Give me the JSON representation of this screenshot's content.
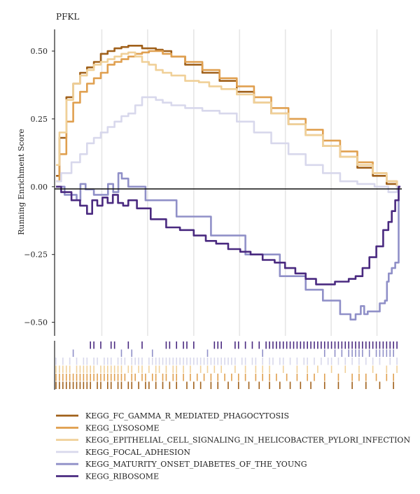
{
  "chart_data": {
    "type": "line",
    "title": "PFKL",
    "ylabel": "Running Enrichment Score",
    "xlabel": "",
    "ylim": [
      -0.55,
      0.58
    ],
    "xlim": [
      0,
      100
    ],
    "yticks": [
      0.5,
      0.25,
      0.0,
      -0.25,
      -0.5
    ],
    "ytick_labels": [
      "0.50",
      "0.25",
      "0.00",
      "−0.25",
      "−0.50"
    ],
    "grid": true,
    "legend_position": "bottom",
    "series": [
      {
        "name": "KEGG_FC_GAMMA_R_MEDIATED_PHAGOCYTOSIS",
        "color": "#a0601a",
        "points": [
          [
            0,
            0.04
          ],
          [
            2,
            0.18
          ],
          [
            4,
            0.33
          ],
          [
            6,
            0.38
          ],
          [
            8,
            0.42
          ],
          [
            10,
            0.44
          ],
          [
            12,
            0.46
          ],
          [
            14,
            0.49
          ],
          [
            16,
            0.5
          ],
          [
            18,
            0.51
          ],
          [
            20,
            0.515
          ],
          [
            22,
            0.52
          ],
          [
            24,
            0.52
          ],
          [
            26,
            0.51
          ],
          [
            28,
            0.51
          ],
          [
            30,
            0.505
          ],
          [
            32,
            0.5
          ],
          [
            35,
            0.48
          ],
          [
            40,
            0.45
          ],
          [
            45,
            0.42
          ],
          [
            50,
            0.39
          ],
          [
            55,
            0.35
          ],
          [
            60,
            0.31
          ],
          [
            65,
            0.27
          ],
          [
            70,
            0.23
          ],
          [
            75,
            0.19
          ],
          [
            80,
            0.15
          ],
          [
            85,
            0.11
          ],
          [
            90,
            0.07
          ],
          [
            94,
            0.04
          ],
          [
            98,
            0.01
          ],
          [
            100,
            0.0
          ]
        ]
      },
      {
        "name": "KEGG_LYSOSOME",
        "color": "#e0a050",
        "points": [
          [
            0,
            0.02
          ],
          [
            2,
            0.12
          ],
          [
            4,
            0.24
          ],
          [
            6,
            0.31
          ],
          [
            8,
            0.35
          ],
          [
            10,
            0.38
          ],
          [
            12,
            0.4
          ],
          [
            14,
            0.42
          ],
          [
            16,
            0.45
          ],
          [
            18,
            0.46
          ],
          [
            20,
            0.47
          ],
          [
            22,
            0.48
          ],
          [
            24,
            0.49
          ],
          [
            26,
            0.495
          ],
          [
            28,
            0.5
          ],
          [
            30,
            0.5
          ],
          [
            32,
            0.49
          ],
          [
            35,
            0.48
          ],
          [
            40,
            0.46
          ],
          [
            45,
            0.43
          ],
          [
            50,
            0.4
          ],
          [
            55,
            0.37
          ],
          [
            60,
            0.33
          ],
          [
            65,
            0.29
          ],
          [
            70,
            0.25
          ],
          [
            75,
            0.21
          ],
          [
            80,
            0.17
          ],
          [
            85,
            0.13
          ],
          [
            90,
            0.09
          ],
          [
            94,
            0.05
          ],
          [
            98,
            0.02
          ],
          [
            100,
            0.0
          ]
        ]
      },
      {
        "name": "KEGG_EPITHELIAL_CELL_SIGNALING_IN_HELICOBACTER_PYLORI_INFECTION",
        "color": "#f0d098",
        "points": [
          [
            0,
            0.08
          ],
          [
            2,
            0.2
          ],
          [
            4,
            0.32
          ],
          [
            6,
            0.38
          ],
          [
            8,
            0.41
          ],
          [
            10,
            0.43
          ],
          [
            12,
            0.45
          ],
          [
            14,
            0.46
          ],
          [
            16,
            0.47
          ],
          [
            18,
            0.48
          ],
          [
            20,
            0.49
          ],
          [
            22,
            0.495
          ],
          [
            24,
            0.48
          ],
          [
            26,
            0.46
          ],
          [
            28,
            0.45
          ],
          [
            30,
            0.43
          ],
          [
            32,
            0.42
          ],
          [
            35,
            0.41
          ],
          [
            40,
            0.39
          ],
          [
            43,
            0.385
          ],
          [
            46,
            0.37
          ],
          [
            50,
            0.36
          ],
          [
            55,
            0.34
          ],
          [
            60,
            0.31
          ],
          [
            65,
            0.27
          ],
          [
            70,
            0.23
          ],
          [
            75,
            0.19
          ],
          [
            80,
            0.15
          ],
          [
            85,
            0.11
          ],
          [
            90,
            0.08
          ],
          [
            94,
            0.05
          ],
          [
            98,
            0.02
          ],
          [
            100,
            0.0
          ]
        ]
      },
      {
        "name": "KEGG_FOCAL_ADHESION",
        "color": "#d8d8ec",
        "points": [
          [
            0,
            0.02
          ],
          [
            3,
            0.05
          ],
          [
            6,
            0.09
          ],
          [
            8,
            0.12
          ],
          [
            10,
            0.16
          ],
          [
            12,
            0.18
          ],
          [
            14,
            0.2
          ],
          [
            16,
            0.22
          ],
          [
            18,
            0.24
          ],
          [
            20,
            0.26
          ],
          [
            22,
            0.27
          ],
          [
            24,
            0.3
          ],
          [
            26,
            0.33
          ],
          [
            28,
            0.33
          ],
          [
            30,
            0.32
          ],
          [
            32,
            0.31
          ],
          [
            35,
            0.3
          ],
          [
            40,
            0.29
          ],
          [
            45,
            0.28
          ],
          [
            50,
            0.27
          ],
          [
            55,
            0.24
          ],
          [
            60,
            0.2
          ],
          [
            65,
            0.16
          ],
          [
            70,
            0.12
          ],
          [
            75,
            0.08
          ],
          [
            80,
            0.05
          ],
          [
            85,
            0.02
          ],
          [
            90,
            0.01
          ],
          [
            95,
            0.0
          ],
          [
            98,
            -0.02
          ],
          [
            100,
            0.0
          ]
        ]
      },
      {
        "name": "KEGG_MATURITY_ONSET_DIABETES_OF_THE_YOUNG",
        "color": "#9090c8",
        "points": [
          [
            0,
            0.0
          ],
          [
            5,
            -0.03
          ],
          [
            7,
            -0.05
          ],
          [
            7.2,
            0.01
          ],
          [
            10,
            -0.01
          ],
          [
            12,
            -0.03
          ],
          [
            15,
            -0.03
          ],
          [
            15.2,
            0.01
          ],
          [
            18,
            -0.02
          ],
          [
            18.2,
            0.05
          ],
          [
            20,
            0.03
          ],
          [
            22,
            0.0
          ],
          [
            30,
            -0.05
          ],
          [
            40,
            -0.11
          ],
          [
            50,
            -0.18
          ],
          [
            60,
            -0.25
          ],
          [
            70,
            -0.33
          ],
          [
            75,
            -0.38
          ],
          [
            80,
            -0.42
          ],
          [
            85,
            -0.47
          ],
          [
            86,
            -0.49
          ],
          [
            88,
            -0.47
          ],
          [
            89,
            -0.44
          ],
          [
            90,
            -0.47
          ],
          [
            91,
            -0.46
          ],
          [
            93,
            -0.46
          ],
          [
            95,
            -0.43
          ],
          [
            96,
            -0.42
          ],
          [
            96.2,
            -0.35
          ],
          [
            97,
            -0.32
          ],
          [
            98,
            -0.3
          ],
          [
            99,
            -0.28
          ],
          [
            100,
            0.0
          ]
        ]
      },
      {
        "name": "KEGG_RIBOSOME",
        "color": "#4a2a80",
        "points": [
          [
            0,
            0.0
          ],
          [
            3,
            -0.02
          ],
          [
            6,
            -0.05
          ],
          [
            8,
            -0.07
          ],
          [
            10,
            -0.1
          ],
          [
            11,
            -0.05
          ],
          [
            13,
            -0.07
          ],
          [
            14,
            -0.04
          ],
          [
            16,
            -0.06
          ],
          [
            17,
            -0.03
          ],
          [
            19,
            -0.06
          ],
          [
            20,
            -0.07
          ],
          [
            22,
            -0.05
          ],
          [
            25,
            -0.08
          ],
          [
            30,
            -0.12
          ],
          [
            34,
            -0.15
          ],
          [
            38,
            -0.16
          ],
          [
            42,
            -0.18
          ],
          [
            45,
            -0.2
          ],
          [
            48,
            -0.21
          ],
          [
            52,
            -0.23
          ],
          [
            55,
            -0.24
          ],
          [
            58,
            -0.25
          ],
          [
            62,
            -0.27
          ],
          [
            65,
            -0.28
          ],
          [
            68,
            -0.3
          ],
          [
            71,
            -0.32
          ],
          [
            74,
            -0.34
          ],
          [
            77,
            -0.36
          ],
          [
            80,
            -0.36
          ],
          [
            82,
            -0.35
          ],
          [
            84,
            -0.35
          ],
          [
            86,
            -0.34
          ],
          [
            88,
            -0.33
          ],
          [
            90,
            -0.3
          ],
          [
            92,
            -0.26
          ],
          [
            94,
            -0.22
          ],
          [
            96,
            -0.16
          ],
          [
            97,
            -0.13
          ],
          [
            98,
            -0.09
          ],
          [
            99,
            -0.05
          ],
          [
            100,
            0.0
          ]
        ]
      }
    ],
    "hit_rows": [
      {
        "color": "#4a2a80",
        "hits": [
          10,
          11,
          13,
          16,
          17,
          21,
          25,
          32,
          33,
          35,
          37,
          38,
          40,
          46,
          47,
          48,
          52,
          53,
          55,
          57,
          59,
          61,
          62,
          63,
          64,
          65,
          66,
          67,
          68,
          69,
          70,
          71,
          72,
          73,
          74,
          75,
          76,
          77,
          78,
          79,
          80,
          81,
          82,
          83,
          84,
          85,
          86,
          87,
          88,
          89,
          90,
          91,
          92,
          93,
          94,
          95,
          96,
          97,
          98,
          99
        ]
      },
      {
        "color": "#9090c8",
        "hits": [
          5,
          19,
          22,
          28,
          44,
          60,
          78,
          81,
          83,
          85,
          86,
          87,
          88,
          89,
          91,
          93,
          94,
          95,
          96,
          97,
          98
        ]
      },
      {
        "color": "#d8d8ec",
        "hits": [
          0,
          2,
          4,
          6,
          8,
          9,
          11,
          12,
          14,
          15,
          16,
          18,
          19,
          20,
          22,
          23,
          24,
          25,
          27,
          28,
          29,
          30,
          31,
          32,
          33,
          34,
          35,
          36,
          37,
          38,
          39,
          40,
          41,
          42,
          43,
          44,
          45,
          46,
          47,
          48,
          49,
          50,
          51,
          52,
          54,
          55,
          57,
          58,
          60,
          62,
          63,
          65,
          66,
          68,
          70,
          72,
          73,
          75,
          77,
          79,
          80,
          82,
          84,
          86,
          88,
          90,
          92,
          94,
          97,
          99
        ]
      },
      {
        "color": "#f0d098",
        "hits": [
          0,
          1,
          2,
          3,
          4,
          6,
          7,
          8,
          9,
          10,
          11,
          13,
          14,
          15,
          16,
          17,
          18,
          19,
          21,
          22,
          24,
          25,
          27,
          29,
          30,
          32,
          34,
          35,
          37,
          39,
          42,
          44,
          46,
          48,
          52,
          55,
          58,
          60,
          62,
          66,
          70,
          73,
          76,
          80,
          84,
          88,
          92,
          96,
          99
        ]
      },
      {
        "color": "#e0a050",
        "hits": [
          0,
          1,
          2,
          3,
          4,
          5,
          6,
          7,
          8,
          9,
          10,
          11,
          12,
          13,
          14,
          15,
          16,
          17,
          18,
          19,
          20,
          22,
          23,
          25,
          26,
          28,
          29,
          31,
          32,
          34,
          35,
          37,
          39,
          41,
          43,
          45,
          47,
          49,
          51,
          53,
          55,
          58,
          60,
          62,
          64,
          67,
          70,
          73,
          75,
          78,
          82,
          86,
          88,
          90,
          93,
          96,
          98
        ]
      },
      {
        "color": "#a0601a",
        "hits": [
          0,
          1,
          2,
          3,
          4,
          5,
          6,
          7,
          8,
          9,
          10,
          12,
          13,
          15,
          16,
          18,
          19,
          21,
          22,
          24,
          26,
          27,
          29,
          31,
          33,
          35,
          38,
          40,
          42,
          45,
          47,
          50,
          53,
          56,
          59,
          62,
          65,
          68,
          71,
          74,
          78,
          82,
          86,
          90,
          94,
          98
        ]
      }
    ]
  }
}
